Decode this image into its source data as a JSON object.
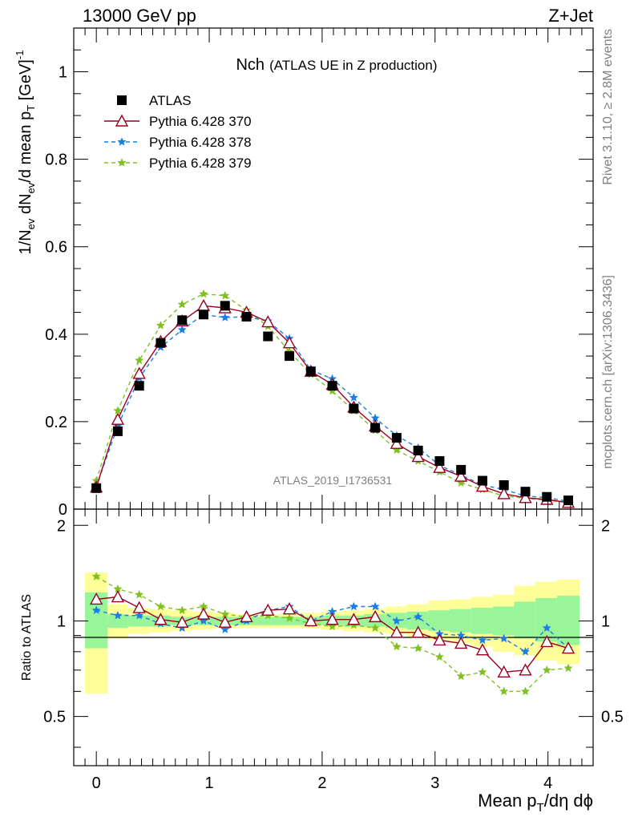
{
  "header": {
    "left": "13000 GeV pp",
    "right": "Z+Jet"
  },
  "side_labels": {
    "top": "Rivet 3.1.10, ≥ 2.8M events",
    "bottom": "mcplots.cern.ch [arXiv:1306.3436]"
  },
  "main_title": {
    "main": "Nch",
    "sub": "(ATLAS UE in Z production)"
  },
  "watermark": "ATLAS_2019_I1736531",
  "chart_data": {
    "type": "scatter",
    "x": [
      0.0,
      0.19,
      0.38,
      0.57,
      0.76,
      0.95,
      1.14,
      1.33,
      1.52,
      1.71,
      1.9,
      2.09,
      2.28,
      2.47,
      2.66,
      2.85,
      3.04,
      3.23,
      3.42,
      3.61,
      3.8,
      3.99,
      4.18
    ],
    "xlim": [
      -0.2,
      4.4
    ],
    "xlabel": "Mean p_T/dη dϕ",
    "xticks": [
      "0",
      "1",
      "2",
      "3",
      "4"
    ],
    "ylabel": "1/N_ev dN_ev/d mean p_T [GeV]^-1",
    "ylim": [
      0,
      1.1
    ],
    "yticks": [
      "0",
      "0.2",
      "0.4",
      "0.6",
      "0.8",
      "1"
    ],
    "series": [
      {
        "name": "ATLAS",
        "marker": "square",
        "color": "#000000",
        "values": [
          0.048,
          0.178,
          0.282,
          0.38,
          0.432,
          0.445,
          0.465,
          0.44,
          0.395,
          0.35,
          0.315,
          0.282,
          0.23,
          0.186,
          0.163,
          0.134,
          0.11,
          0.09,
          0.065,
          0.055,
          0.04,
          0.028,
          0.02
        ]
      },
      {
        "name": "Pythia 6.428 370",
        "marker": "triangle",
        "color": "#990022",
        "dash": "solid",
        "values": [
          0.05,
          0.205,
          0.31,
          0.383,
          0.43,
          0.465,
          0.46,
          0.45,
          0.428,
          0.38,
          0.315,
          0.285,
          0.233,
          0.19,
          0.15,
          0.12,
          0.095,
          0.075,
          0.052,
          0.035,
          0.026,
          0.022,
          0.015
        ]
      },
      {
        "name": "Pythia 6.428 378",
        "marker": "star",
        "color": "#1a7ee6",
        "dash": "dashed",
        "values": [
          0.052,
          0.19,
          0.3,
          0.37,
          0.41,
          0.445,
          0.438,
          0.44,
          0.43,
          0.39,
          0.318,
          0.298,
          0.255,
          0.208,
          0.168,
          0.14,
          0.1,
          0.078,
          0.055,
          0.045,
          0.03,
          0.026,
          0.018
        ]
      },
      {
        "name": "Pythia 6.428 379",
        "marker": "star",
        "color": "#80c020",
        "dash": "dashed",
        "values": [
          0.065,
          0.225,
          0.34,
          0.42,
          0.468,
          0.492,
          0.488,
          0.455,
          0.418,
          0.36,
          0.308,
          0.27,
          0.225,
          0.18,
          0.135,
          0.11,
          0.085,
          0.06,
          0.045,
          0.03,
          0.025,
          0.02,
          0.015
        ]
      }
    ],
    "ratio_panel": {
      "ylabel": "Ratio to ATLAS",
      "ylim": [
        0.35,
        2.25
      ],
      "yticks": [
        "0.5",
        "1",
        "2"
      ],
      "band_edges": [
        -0.1,
        0.1,
        0.28,
        0.47,
        0.66,
        0.85,
        1.04,
        1.23,
        1.42,
        1.61,
        1.8,
        1.99,
        2.18,
        2.37,
        2.56,
        2.75,
        2.94,
        3.13,
        3.32,
        3.51,
        3.7,
        3.89,
        4.08,
        4.28
      ],
      "band_green": [
        [
          0.82,
          1.23
        ],
        [
          0.95,
          1.05
        ],
        [
          0.96,
          1.04
        ],
        [
          0.96,
          1.04
        ],
        [
          0.97,
          1.03
        ],
        [
          0.97,
          1.03
        ],
        [
          0.97,
          1.03
        ],
        [
          0.97,
          1.03
        ],
        [
          0.97,
          1.03
        ],
        [
          0.97,
          1.03
        ],
        [
          0.97,
          1.03
        ],
        [
          0.97,
          1.04
        ],
        [
          0.96,
          1.04
        ],
        [
          0.96,
          1.05
        ],
        [
          0.95,
          1.06
        ],
        [
          0.94,
          1.07
        ],
        [
          0.93,
          1.08
        ],
        [
          0.92,
          1.09
        ],
        [
          0.91,
          1.1
        ],
        [
          0.9,
          1.11
        ],
        [
          0.88,
          1.15
        ],
        [
          0.86,
          1.18
        ],
        [
          0.84,
          1.2
        ]
      ],
      "band_yellow": [
        [
          0.59,
          1.42
        ],
        [
          0.88,
          1.13
        ],
        [
          0.91,
          1.1
        ],
        [
          0.92,
          1.09
        ],
        [
          0.93,
          1.08
        ],
        [
          0.94,
          1.07
        ],
        [
          0.95,
          1.06
        ],
        [
          0.95,
          1.05
        ],
        [
          0.95,
          1.05
        ],
        [
          0.95,
          1.05
        ],
        [
          0.95,
          1.06
        ],
        [
          0.94,
          1.07
        ],
        [
          0.93,
          1.08
        ],
        [
          0.92,
          1.09
        ],
        [
          0.91,
          1.11
        ],
        [
          0.89,
          1.13
        ],
        [
          0.87,
          1.16
        ],
        [
          0.85,
          1.17
        ],
        [
          0.83,
          1.19
        ],
        [
          0.8,
          1.21
        ],
        [
          0.78,
          1.29
        ],
        [
          0.75,
          1.33
        ],
        [
          0.73,
          1.35
        ]
      ],
      "series": [
        {
          "name": "Pythia 6.428 370",
          "values": [
            1.17,
            1.19,
            1.1,
            1.01,
            0.99,
            1.05,
            0.99,
            1.03,
            1.08,
            1.09,
            1.0,
            1.01,
            1.01,
            1.03,
            0.92,
            0.92,
            0.87,
            0.85,
            0.81,
            0.69,
            0.7,
            0.86,
            0.82
          ]
        },
        {
          "name": "Pythia 6.428 378",
          "values": [
            1.08,
            1.04,
            1.04,
            0.98,
            0.95,
            1.0,
            0.94,
            1.0,
            1.08,
            1.11,
            1.0,
            1.07,
            1.11,
            1.11,
            1.0,
            1.03,
            0.91,
            0.9,
            0.87,
            0.88,
            0.8,
            0.95,
            0.82
          ]
        },
        {
          "name": "Pythia 6.428 379",
          "values": [
            1.38,
            1.26,
            1.21,
            1.11,
            1.08,
            1.11,
            1.05,
            1.03,
            1.04,
            1.02,
            0.98,
            0.96,
            0.97,
            0.95,
            0.83,
            0.82,
            0.77,
            0.67,
            0.69,
            0.6,
            0.6,
            0.7,
            0.71
          ]
        }
      ]
    }
  }
}
